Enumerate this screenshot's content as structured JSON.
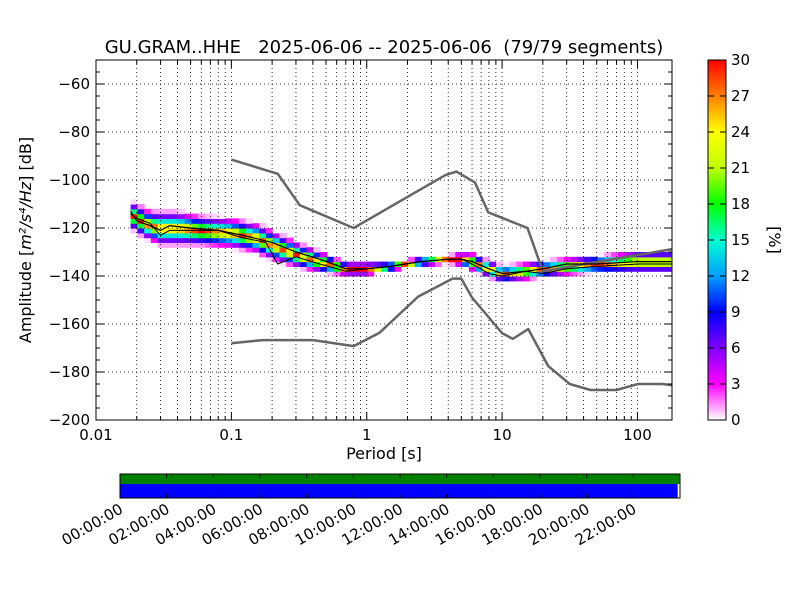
{
  "chart_data": [
    {
      "type": "heatmap",
      "title": "GU.GRAM..HHE   2025-06-06 -- 2025-06-06  (79/79 segments)",
      "xlabel": "Period [s]",
      "ylabel_prefix": "Amplitude [",
      "ylabel_units": "m²/s⁴/Hz",
      "ylabel_suffix": "] [dB]",
      "x_scale": "log",
      "xlim": [
        0.01,
        180
      ],
      "ylim": [
        -200,
        -50
      ],
      "x_ticks": [
        0.01,
        0.1,
        1,
        10,
        100
      ],
      "x_tick_labels": [
        "0.01",
        "0.1",
        "1",
        "10",
        "100"
      ],
      "y_ticks": [
        -200,
        -180,
        -160,
        -140,
        -120,
        -100,
        -80,
        -60
      ],
      "y_tick_labels": [
        "−200",
        "−180",
        "−160",
        "−140",
        "−120",
        "−100",
        "−80",
        "−60"
      ],
      "grid": true,
      "colorbar": {
        "label": "[%]",
        "min": 0,
        "max": 30,
        "ticks": [
          0,
          3,
          6,
          9,
          12,
          15,
          18,
          21,
          24,
          27,
          30
        ],
        "colormap": [
          "#ffffff",
          "#ff00ff",
          "#8000ff",
          "#0000ff",
          "#00a0ff",
          "#00ffd0",
          "#00ff00",
          "#c0ff00",
          "#ffff00",
          "#ff8000",
          "#ff0000"
        ]
      },
      "noise_model_color": "#666666",
      "noise_model_high": {
        "x": [
          0.1,
          0.22,
          0.32,
          0.8,
          3.8,
          4.6,
          6.3,
          7.9,
          15.4,
          20,
          354.8
        ],
        "y": [
          -91.5,
          -97.4,
          -110.5,
          -120,
          -98,
          -96.5,
          -101,
          -113.5,
          -120,
          -138,
          -126
        ]
      },
      "noise_model_low": {
        "x": [
          0.1,
          0.17,
          0.4,
          0.8,
          1.24,
          2.4,
          4.3,
          5,
          6,
          10,
          12,
          15.6,
          21.9,
          31.6,
          45,
          70,
          101,
          154,
          180
        ],
        "y": [
          -168,
          -166.7,
          -166.7,
          -169.2,
          -163.7,
          -148.6,
          -141.1,
          -141.1,
          -149,
          -163.8,
          -166.2,
          -162.1,
          -177.5,
          -185,
          -187.5,
          -187.5,
          -185,
          -185,
          -185.5
        ]
      },
      "mean_curve_color": "#000000",
      "mean_curve": {
        "x": [
          0.018,
          0.02,
          0.025,
          0.03,
          0.035,
          0.05,
          0.08,
          0.12,
          0.2,
          0.3,
          0.45,
          0.7,
          1,
          1.5,
          2.5,
          4,
          5,
          6,
          8,
          10,
          15,
          20,
          30,
          50,
          100,
          180
        ],
        "y": [
          -113,
          -117,
          -119,
          -121,
          -119,
          -120,
          -121,
          -123,
          -126,
          -130,
          -133,
          -137,
          -137,
          -136,
          -134,
          -133,
          -133,
          -134,
          -137,
          -139,
          -138,
          -137,
          -135,
          -135,
          -134,
          -134
        ]
      },
      "mode_curve": {
        "x": [
          0.018,
          0.02,
          0.025,
          0.03,
          0.035,
          0.05,
          0.08,
          0.12,
          0.18,
          0.22,
          0.3,
          0.45,
          0.7,
          1,
          1.5,
          2.5,
          4,
          5,
          6,
          8,
          10,
          15,
          20,
          30,
          50,
          100,
          180
        ],
        "y": [
          -114,
          -116,
          -118,
          -123,
          -121,
          -121,
          -121,
          -124,
          -126,
          -135,
          -132,
          -135,
          -138,
          -137,
          -136,
          -134,
          -133,
          -133,
          -135,
          -139,
          -140,
          -138,
          -139,
          -137,
          -136,
          -135,
          -135
        ]
      },
      "pdf_band": {
        "x": [
          0.018,
          0.02,
          0.025,
          0.03,
          0.04,
          0.06,
          0.1,
          0.15,
          0.2,
          0.3,
          0.45,
          0.7,
          1,
          1.5,
          2.5,
          4,
          5,
          6,
          8,
          10,
          15,
          20,
          30,
          50,
          100,
          180
        ],
        "center": [
          -114,
          -116,
          -119,
          -120,
          -120,
          -121,
          -122,
          -124,
          -127,
          -131,
          -134,
          -137,
          -137,
          -136,
          -134,
          -133,
          -133,
          -134,
          -137,
          -139,
          -138,
          -137,
          -136,
          -135,
          -134,
          -134
        ],
        "spread": [
          6,
          7,
          7,
          8,
          8,
          7,
          7,
          7,
          7,
          6,
          5,
          3,
          3,
          2,
          2,
          2,
          3,
          4,
          4,
          4,
          4,
          4,
          4,
          4,
          5,
          5
        ]
      }
    },
    {
      "type": "timeline",
      "time_range": [
        "00:00:00",
        "24:00:00"
      ],
      "tick_labels": [
        "00:00:00",
        "02:00:00",
        "04:00:00",
        "06:00:00",
        "08:00:00",
        "10:00:00",
        "12:00:00",
        "14:00:00",
        "16:00:00",
        "18:00:00",
        "20:00:00",
        "22:00:00"
      ],
      "data_coverage_color": "#008000",
      "data_coverage_hours": [
        0,
        24
      ],
      "psd_coverage_color": "#0000ff",
      "psd_coverage_hours": [
        0,
        23.9
      ]
    }
  ]
}
